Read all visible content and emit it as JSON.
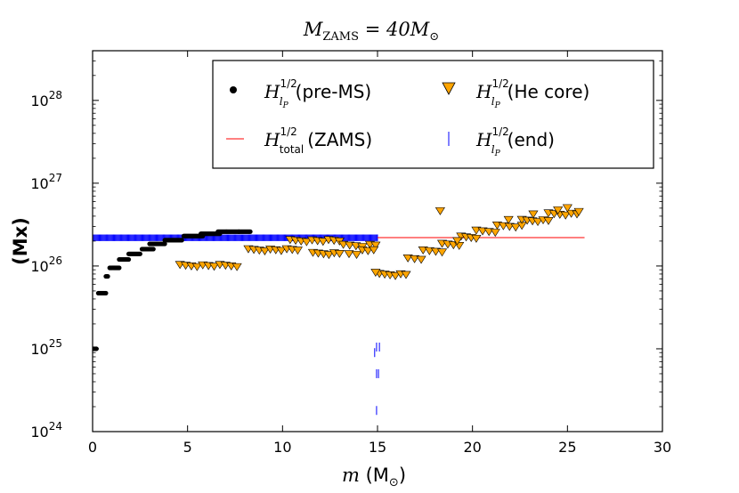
{
  "chart_data": {
    "type": "scatter",
    "title_main": "M",
    "title_sub": "ZAMS",
    "title_rest": " = 40M",
    "title_sun": "⊙",
    "xlabel_var": "m",
    "xlabel_open": " (M",
    "xlabel_sun": "⊙",
    "xlabel_close": ")",
    "ylabel": "(Mx)",
    "xlim": [
      0,
      30
    ],
    "ylim_log10": [
      24,
      28.6
    ],
    "x_ticks": [
      0,
      5,
      10,
      15,
      20,
      25,
      30
    ],
    "x_tick_labels": [
      "0",
      "5",
      "10",
      "15",
      "20",
      "25",
      "30"
    ],
    "y_ticks_exp": [
      24,
      25,
      26,
      27,
      28
    ],
    "y_tick_base": "10",
    "y_tick_exps": [
      "24",
      "25",
      "26",
      "27",
      "28"
    ],
    "series": [
      {
        "name": "pre-MS",
        "legend_H": "H",
        "legend_sup": "1/2",
        "legend_sub": "l",
        "legend_subsub": "P",
        "legend_text": "(pre-MS)",
        "marker": "circle",
        "color": "#000000",
        "segments": [
          {
            "x": [
              0.0,
              0.2
            ],
            "y": 1e+25
          },
          {
            "x": [
              0.3,
              0.7
            ],
            "y": 4.7e+25
          },
          {
            "x": [
              0.7,
              0.8
            ],
            "y": 7.5e+25
          },
          {
            "x": [
              0.9,
              1.4
            ],
            "y": 9.5e+25
          },
          {
            "x": [
              1.4,
              1.9
            ],
            "y": 1.2e+26
          },
          {
            "x": [
              1.9,
              2.5
            ],
            "y": 1.4e+26
          },
          {
            "x": [
              2.6,
              3.2
            ],
            "y": 1.6e+26
          },
          {
            "x": [
              3.0,
              3.8
            ],
            "y": 1.85e+26
          },
          {
            "x": [
              3.8,
              4.7
            ],
            "y": 2.05e+26
          },
          {
            "x": [
              4.8,
              5.8
            ],
            "y": 2.3e+26
          },
          {
            "x": [
              5.7,
              6.7
            ],
            "y": 2.45e+26
          },
          {
            "x": [
              6.6,
              7.7
            ],
            "y": 2.6e+26
          },
          {
            "x": [
              7.7,
              8.3
            ],
            "y": 2.6e+26
          }
        ]
      },
      {
        "name": "He core",
        "legend_H": "H",
        "legend_sup": "1/2",
        "legend_sub": "l",
        "legend_subsub": "P",
        "legend_text": "(He core)",
        "marker": "triangle_down",
        "color": "#ffa500",
        "segments": [
          {
            "x": [
              4.6,
              7.6
            ],
            "y": 1e+26
          },
          {
            "x": [
              8.2,
              10.8
            ],
            "y": 1.55e+26
          },
          {
            "x": [
              10.4,
              13.0
            ],
            "y": 2e+26
          },
          {
            "x": [
              11.6,
              13.0
            ],
            "y": 1.4e+26
          },
          {
            "x": [
              13.2,
              14.2
            ],
            "y": 1.75e+26
          },
          {
            "x": [
              13.5,
              13.9
            ],
            "y": 1.35e+26
          },
          {
            "x": [
              14.2,
              14.5
            ],
            "y": 1.5e+26
          },
          {
            "x": [
              14.6,
              14.9
            ],
            "y": 1.75e+26
          },
          {
            "x": [
              15.1,
              16.5
            ],
            "y": 7.8e+25
          },
          {
            "x": [
              16.6,
              17.3
            ],
            "y": 1.2e+26
          },
          {
            "x": [
              17.4,
              18.4
            ],
            "y": 1.5e+26
          },
          {
            "x": [
              18.4,
              19.3
            ],
            "y": 1.8e+26
          },
          {
            "x": [
              19.4,
              20.2
            ],
            "y": 2.2e+26
          },
          {
            "x": [
              20.2,
              21.2
            ],
            "y": 2.6e+26
          },
          {
            "x": [
              21.3,
              22.6
            ],
            "y": 3e+26
          },
          {
            "x": [
              22.6,
              24.0
            ],
            "y": 3.5e+26
          },
          {
            "x": [
              24.0,
              25.5
            ],
            "y": 4.2e+26
          }
        ],
        "points": [
          {
            "x": 14.8,
            "y": 1.55e+26
          },
          {
            "x": 14.9,
            "y": 8.3e+25
          },
          {
            "x": 18.3,
            "y": 4.6e+26
          },
          {
            "x": 19.2,
            "y": 2e+26
          },
          {
            "x": 21.9,
            "y": 3.6e+26
          },
          {
            "x": 23.2,
            "y": 4.2e+26
          },
          {
            "x": 24.5,
            "y": 4.7e+26
          },
          {
            "x": 25.0,
            "y": 5e+26
          },
          {
            "x": 25.6,
            "y": 4.5e+26
          }
        ]
      },
      {
        "name": "ZAMS",
        "legend_H": "H",
        "legend_sup": "1/2",
        "legend_sub": "total",
        "legend_subsub": "",
        "legend_text": "(ZAMS)",
        "marker": "line",
        "color": "#ff0000",
        "x": [
          15.0,
          25.9
        ],
        "y": 2.2e+26
      },
      {
        "name": "end",
        "legend_H": "H",
        "legend_sup": "1/2",
        "legend_sub": "l",
        "legend_subsub": "P",
        "legend_text": "(end)",
        "marker": "vline",
        "color": "#0000ff",
        "band": {
          "x": [
            0.0,
            15.0
          ],
          "y_low": 2e+26,
          "y_high": 2.4e+26
        },
        "points": [
          {
            "x": 14.85,
            "y": 9e+24
          },
          {
            "x": 14.95,
            "y": 1.05e+25
          },
          {
            "x": 15.1,
            "y": 1.05e+25
          },
          {
            "x": 14.95,
            "y": 5e+24
          },
          {
            "x": 15.05,
            "y": 5e+24
          },
          {
            "x": 14.95,
            "y": 1.8e+24
          }
        ]
      }
    ],
    "legend_position": "top-right"
  }
}
